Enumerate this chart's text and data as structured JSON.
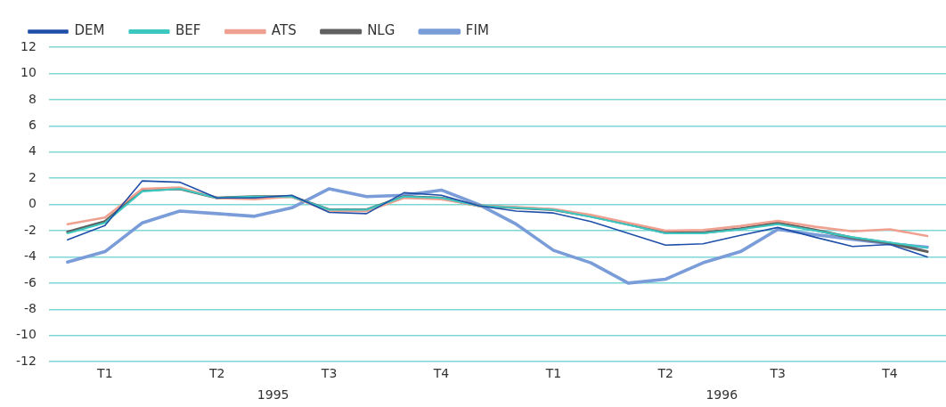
{
  "chart_data": {
    "type": "line",
    "categories": [
      null,
      "T1",
      null,
      null,
      "T2",
      null,
      null,
      "T3",
      null,
      null,
      "T4",
      null,
      null,
      "T1",
      null,
      null,
      "T2",
      null,
      null,
      "T3",
      null,
      null,
      "T4",
      null
    ],
    "series": [
      {
        "name": "DEM",
        "color": "#1f4fa8",
        "values": [
          -2.7,
          -1.6,
          1.8,
          1.7,
          0.5,
          0.5,
          0.7,
          -0.6,
          -0.7,
          0.9,
          0.7,
          -0.1,
          -0.5,
          -0.65,
          -1.3,
          -2.2,
          -3.1,
          -3.0,
          -2.35,
          -1.75,
          -2.5,
          -3.2,
          -3.05,
          -4.0
        ]
      },
      {
        "name": "BEF",
        "color": "#3cc8c0",
        "values": [
          -2.2,
          -1.4,
          1.0,
          1.2,
          0.5,
          0.6,
          0.6,
          -0.4,
          -0.4,
          0.6,
          0.5,
          -0.1,
          -0.25,
          -0.4,
          -0.95,
          -1.55,
          -2.2,
          -2.2,
          -1.9,
          -1.5,
          -2.0,
          -2.5,
          -2.9,
          -3.3
        ]
      },
      {
        "name": "ATS",
        "color": "#f0a090",
        "values": [
          -1.5,
          -1.0,
          1.2,
          1.3,
          0.5,
          0.4,
          0.6,
          -0.5,
          -0.5,
          0.5,
          0.4,
          -0.1,
          -0.2,
          -0.35,
          -0.8,
          -1.4,
          -2.0,
          -1.95,
          -1.65,
          -1.25,
          -1.7,
          -2.05,
          -1.9,
          -2.4
        ]
      },
      {
        "name": "NLG",
        "color": "#606060",
        "values": [
          -2.1,
          -1.3,
          1.1,
          1.2,
          0.5,
          0.6,
          0.6,
          -0.4,
          -0.4,
          0.6,
          0.5,
          -0.1,
          -0.25,
          -0.4,
          -0.9,
          -1.5,
          -2.15,
          -2.15,
          -1.85,
          -1.4,
          -1.95,
          -2.55,
          -2.95,
          -3.6
        ]
      },
      {
        "name": "FIM",
        "color": "#7a9cd8",
        "values": [
          -4.4,
          -3.6,
          -1.4,
          -0.5,
          -0.7,
          -0.9,
          -0.25,
          1.2,
          0.6,
          0.7,
          1.1,
          0.0,
          -1.5,
          -3.5,
          -4.45,
          -6.0,
          -5.7,
          -4.45,
          -3.6,
          -1.9,
          -2.3,
          -2.65,
          -3.0,
          -3.25
        ]
      }
    ],
    "ylim": [
      -12,
      12
    ],
    "yticks": [
      -12,
      -10,
      -8,
      -6,
      -4,
      -2,
      0,
      2,
      4,
      6,
      8,
      10,
      12
    ],
    "grid": "y",
    "legend": "top left",
    "marker": "none",
    "line_style": "solid",
    "annotations": [
      "1995",
      "1996"
    ]
  }
}
